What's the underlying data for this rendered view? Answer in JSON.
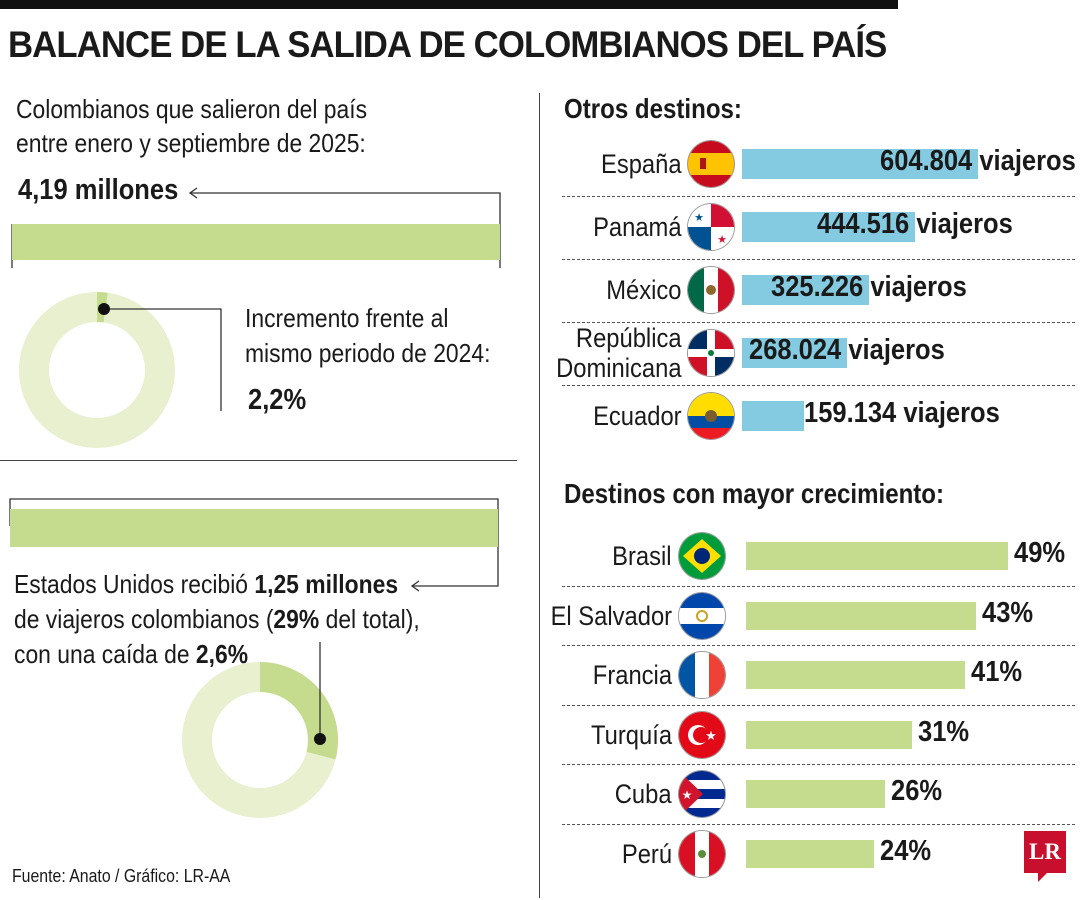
{
  "title": "BALANCE DE LA SALIDA DE COLOMBIANOS DEL PAÍS",
  "total": {
    "line1": "Colombianos que salieron del país",
    "line2": "entre enero y septiembre de 2025:",
    "value": "4,19 millones",
    "bar_fraction": 1.0
  },
  "increase": {
    "line1": "Incremento frente al",
    "line2": "mismo periodo de 2024:",
    "value": "2,2%",
    "fraction": 0.022
  },
  "usa": {
    "t1": "Estados Unidos recibió ",
    "b1": "1,25 millones",
    "t2": "de viajeros colombianos (",
    "b2": "29%",
    "t3": " del total),",
    "t4": "con una caída de ",
    "b3": "2,6%",
    "share": 0.29
  },
  "colors": {
    "green": "#c5dc8e",
    "green_light": "#e8f0d0",
    "blue": "#84cbe1",
    "red": "#c8102e"
  },
  "chart_data": [
    {
      "type": "bar",
      "title": "Otros destinos:",
      "unit": "viajeros",
      "categories": [
        "España",
        "Panamá",
        "México",
        "República Dominicana",
        "Ecuador"
      ],
      "labels": [
        "604.804",
        "444.516",
        "325.226",
        "268.024",
        "159.134"
      ],
      "values": [
        604804,
        444516,
        325226,
        268024,
        159134
      ],
      "flags": [
        "spain-flag-icon",
        "panama-flag-icon",
        "mexico-flag-icon",
        "dominican-republic-flag-icon",
        "ecuador-flag-icon"
      ]
    },
    {
      "type": "bar",
      "title": "Destinos con mayor crecimiento:",
      "categories": [
        "Brasil",
        "El Salvador",
        "Francia",
        "Turquía",
        "Cuba",
        "Perú"
      ],
      "labels": [
        "49%",
        "43%",
        "41%",
        "31%",
        "26%",
        "24%"
      ],
      "values": [
        49,
        43,
        41,
        31,
        26,
        24
      ],
      "flags": [
        "brazil-flag-icon",
        "el-salvador-flag-icon",
        "france-flag-icon",
        "turkey-flag-icon",
        "cuba-flag-icon",
        "peru-flag-icon"
      ]
    }
  ],
  "source": "Fuente: Anato / Gráfico: LR-AA",
  "logo": "LR"
}
